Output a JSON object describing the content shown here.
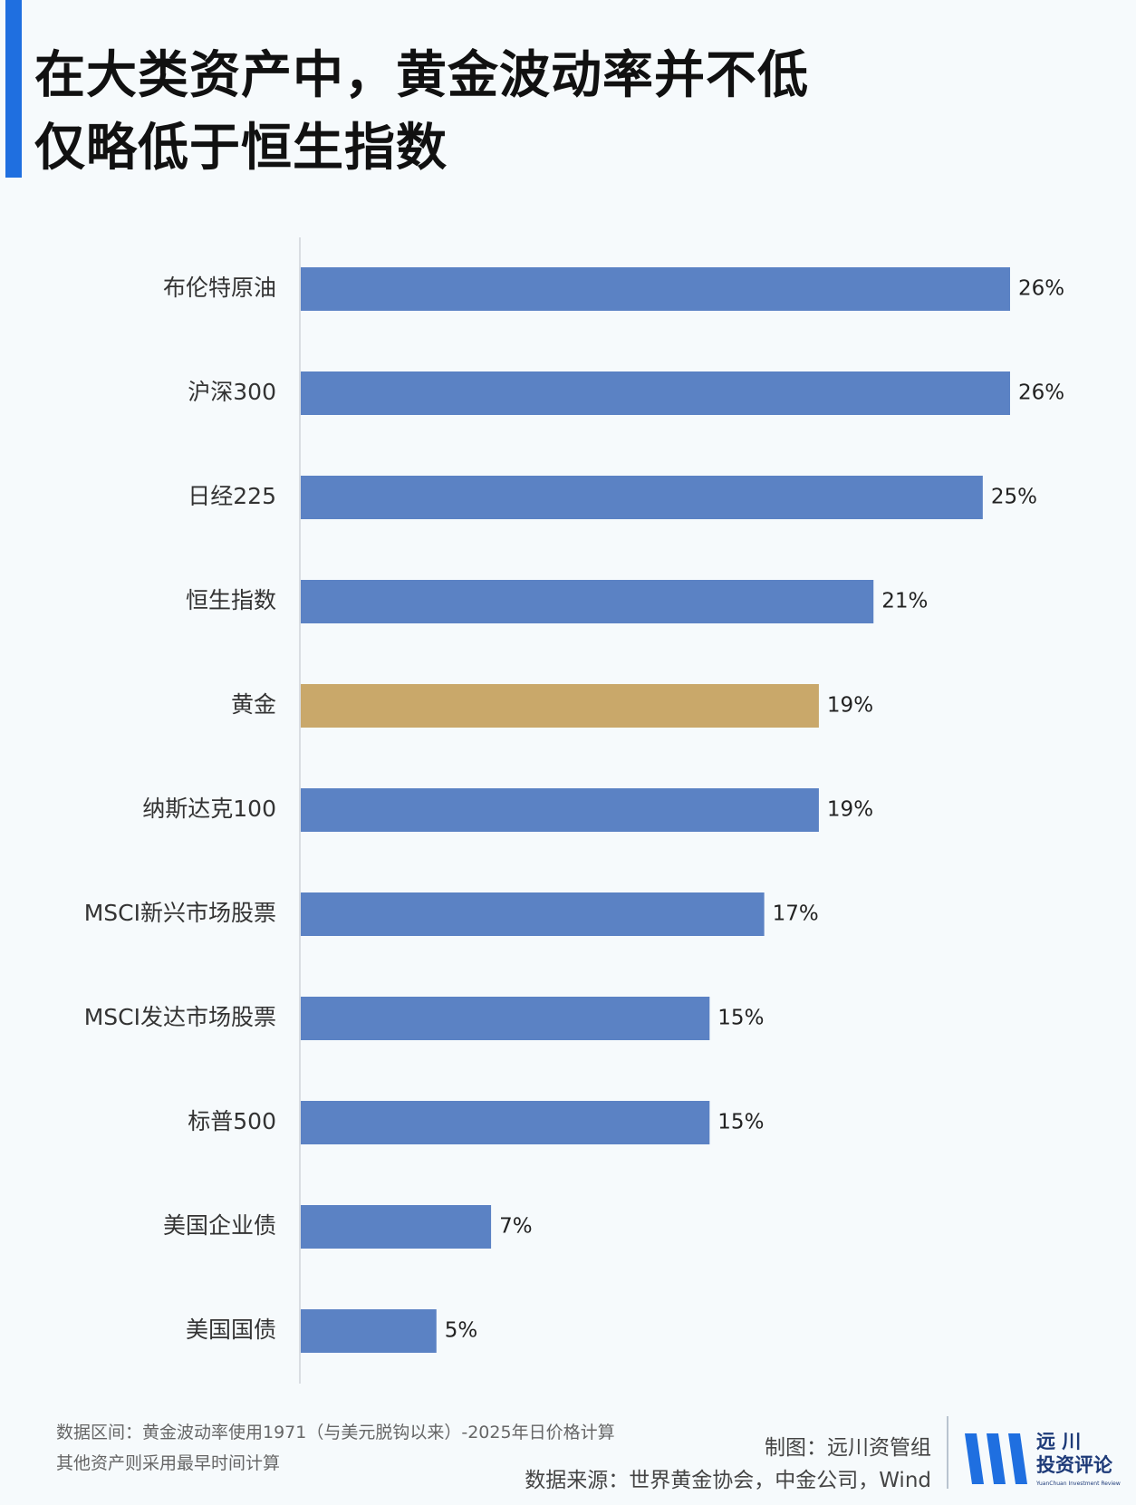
{
  "title": {
    "line1": "在大类资产中，黄金波动率并不低",
    "line2": "仅略低于恒生指数"
  },
  "chart_data": {
    "type": "bar",
    "orientation": "horizontal",
    "categories": [
      "布伦特原油",
      "沪深300",
      "日经225",
      "恒生指数",
      "黄金",
      "纳斯达克100",
      "MSCI新兴市场股票",
      "MSCI发达市场股票",
      "标普500",
      "美国企业债",
      "美国国债"
    ],
    "values": [
      26,
      26,
      25,
      21,
      19,
      19,
      17,
      15,
      15,
      7,
      5
    ],
    "value_labels": [
      "26%",
      "26%",
      "25%",
      "21%",
      "19%",
      "19%",
      "17%",
      "15%",
      "15%",
      "7%",
      "5%"
    ],
    "highlight": [
      "黄金"
    ],
    "colors": {
      "default": "#5b82c4",
      "highlight": "#c9a86a"
    },
    "unit": "%",
    "xlim": [
      0,
      26
    ],
    "grid": false,
    "legend": "none"
  },
  "footnote": {
    "line1": "数据区间：黄金波动率使用1971（与美元脱钩以来）-2025年日价格计算",
    "line2": "其他资产则采用最早时间计算"
  },
  "credits": {
    "made_by": "制图：远川资管组",
    "source": "数据来源：世界黄金协会，中金公司，Wind"
  },
  "logo": {
    "line1": "远 川",
    "line2": "投资评论",
    "tagline": "YuanChuan Investment Review",
    "icon": "three-slanted-bars-logo-icon"
  }
}
